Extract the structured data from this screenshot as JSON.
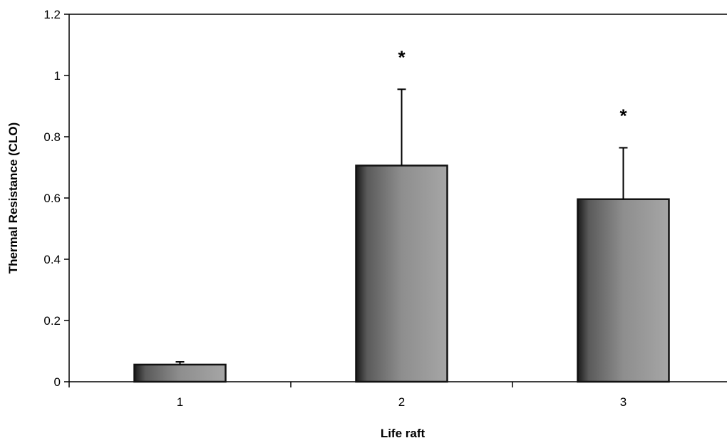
{
  "chart_data": {
    "type": "bar",
    "title": "",
    "xlabel": "Life raft",
    "ylabel": "Thermal Resistance (CLO)",
    "categories": [
      "1",
      "2",
      "3"
    ],
    "values": [
      0.056,
      0.706,
      0.596
    ],
    "error_upper": [
      0.065,
      0.955,
      0.764
    ],
    "annotations": [
      "",
      "*",
      "*"
    ],
    "ylim": [
      0,
      1.2
    ],
    "yticks": [
      "0",
      "0.2",
      "0.4",
      "0.6",
      "0.8",
      "1",
      "1.2"
    ],
    "grid": false,
    "legend": "none",
    "bar_fill": "#9a9a9a",
    "bar_edge": "#111111"
  }
}
